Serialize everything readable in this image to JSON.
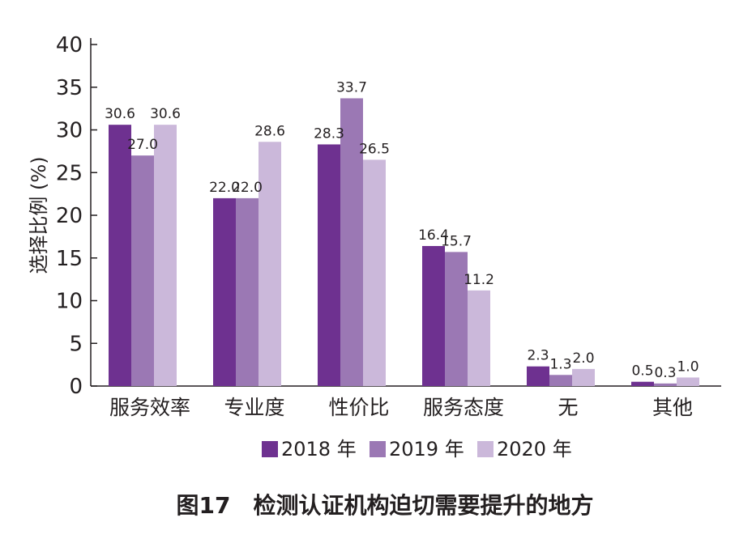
{
  "chart_data": {
    "type": "bar",
    "title": "图17　检测认证机构迫切需要提升的地方",
    "ylabel": "选择比例 (%)",
    "xlabel": "",
    "ylim": [
      0,
      40
    ],
    "yticks": [
      0,
      5,
      10,
      15,
      20,
      25,
      30,
      35,
      40
    ],
    "grid": false,
    "legend_position": "bottom",
    "categories": [
      "服务效率",
      "专业度",
      "性价比",
      "服务态度",
      "无",
      "其他"
    ],
    "series": [
      {
        "name": "2018 年",
        "color": "#6e3190",
        "values": [
          30.6,
          22.0,
          28.3,
          16.4,
          2.3,
          0.5
        ]
      },
      {
        "name": "2019 年",
        "color": "#9b78b4",
        "values": [
          27.0,
          22.0,
          33.7,
          15.7,
          1.3,
          0.3
        ]
      },
      {
        "name": "2020 年",
        "color": "#cbb8da",
        "values": [
          30.6,
          28.6,
          26.5,
          11.2,
          2.0,
          1.0
        ]
      }
    ]
  }
}
